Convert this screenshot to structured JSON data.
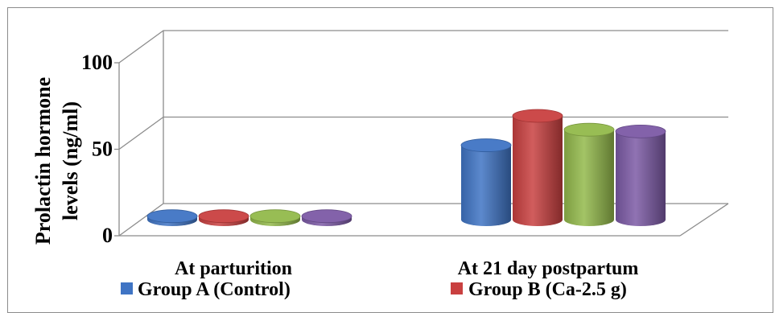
{
  "chart_data": {
    "type": "bar",
    "style": "3d-cylinder",
    "ylabel_line1": "Prolactin hormone",
    "ylabel_line2": "levels (ng/ml)",
    "yticks": [
      "0",
      "50",
      "100"
    ],
    "ylim": [
      0,
      100
    ],
    "categories": [
      "At parturition",
      "At 21 day postpartum"
    ],
    "series": [
      {
        "name": "Group A (Control)",
        "color": "#3f74c4",
        "values": [
          2,
          43
        ]
      },
      {
        "name": "Group B (Ca-2.5 g)",
        "color": "#c94040",
        "values": [
          2,
          60
        ]
      },
      {
        "name": "",
        "color": "#93b94b",
        "values": [
          2,
          52
        ]
      },
      {
        "name": "",
        "color": "#7c5aa6",
        "values": [
          2,
          51
        ]
      }
    ],
    "legend": {
      "placement": "bottom",
      "visible_entries": [
        "Group A (Control)",
        "Group B (Ca-2.5 g)"
      ]
    },
    "grid": true
  }
}
